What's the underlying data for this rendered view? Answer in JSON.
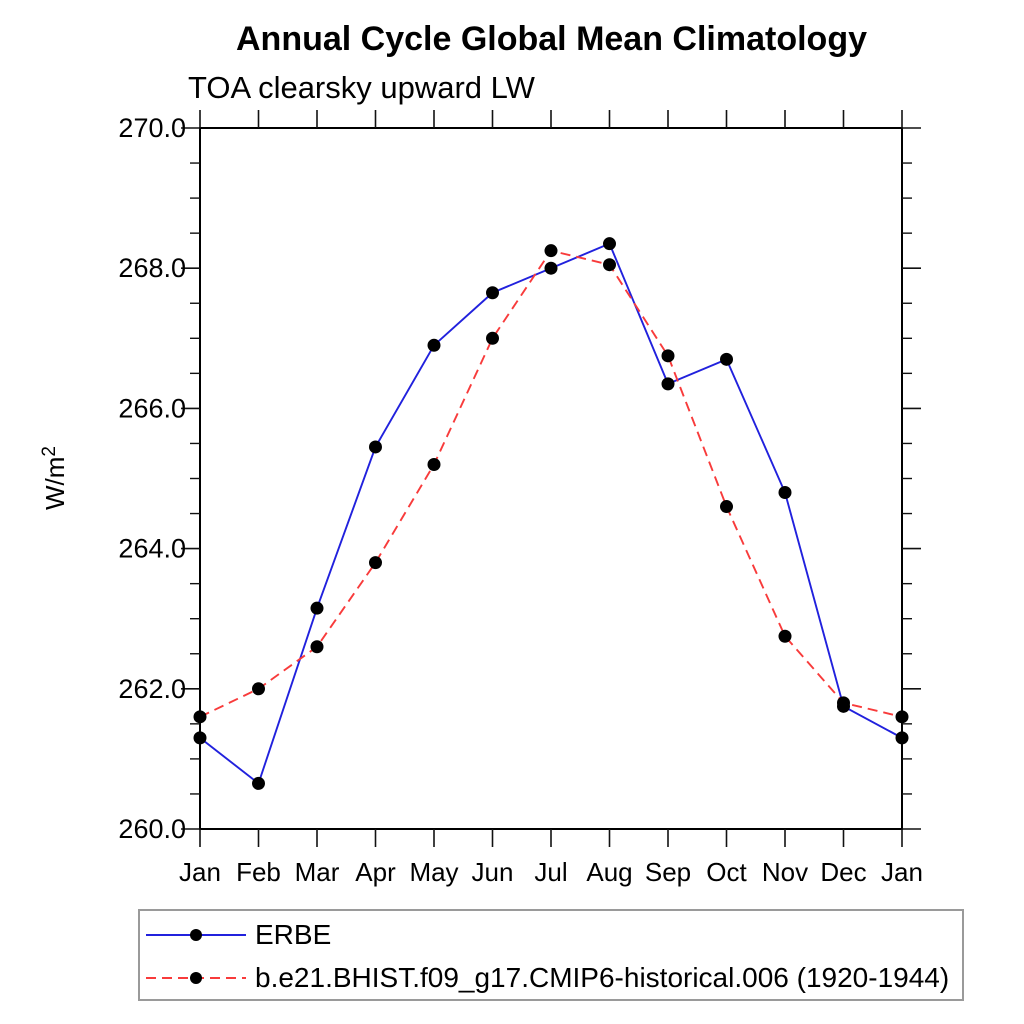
{
  "title": "Annual Cycle Global Mean Climatology",
  "subtitle": "TOA clearsky upward LW",
  "y_axis": {
    "label_base": "W/m",
    "label_exponent": "2"
  },
  "chart_data": {
    "type": "line",
    "title": "Annual Cycle Global Mean Climatology",
    "subtitle": "TOA clearsky upward LW",
    "ylabel": "W/m2",
    "xlabel": "",
    "grid": false,
    "legend_position": "bottom-left-box",
    "x_categories": [
      "Jan",
      "Feb",
      "Mar",
      "Apr",
      "May",
      "Jun",
      "Jul",
      "Aug",
      "Sep",
      "Oct",
      "Nov",
      "Dec",
      "Jan"
    ],
    "ylim": [
      260.0,
      270.0
    ],
    "y_minor_step": 0.5,
    "y_major_ticks": [
      {
        "value": 260.0,
        "label": "260.0"
      },
      {
        "value": 262.0,
        "label": "262.0"
      },
      {
        "value": 264.0,
        "label": "264.0"
      },
      {
        "value": 266.0,
        "label": "266.0"
      },
      {
        "value": 268.0,
        "label": "268.0"
      },
      {
        "value": 270.0,
        "label": "270.0"
      }
    ],
    "series": [
      {
        "name": "ERBE",
        "color": "#2121dd",
        "line_style": "solid",
        "marker": "filled-circle",
        "marker_color": "#000000",
        "values": [
          261.3,
          260.65,
          263.15,
          265.45,
          266.9,
          267.65,
          268.0,
          268.35,
          266.35,
          266.7,
          264.8,
          261.75,
          261.3
        ]
      },
      {
        "name": "b.e21.BHIST.f09_g17.CMIP6-historical.006 (1920-1944)",
        "color": "#f83b3b",
        "line_style": "dashed",
        "marker": "filled-circle",
        "marker_color": "#000000",
        "values": [
          261.6,
          262.0,
          262.6,
          263.8,
          265.2,
          267.0,
          268.25,
          268.05,
          266.75,
          264.6,
          262.75,
          261.8,
          261.6
        ]
      }
    ]
  }
}
